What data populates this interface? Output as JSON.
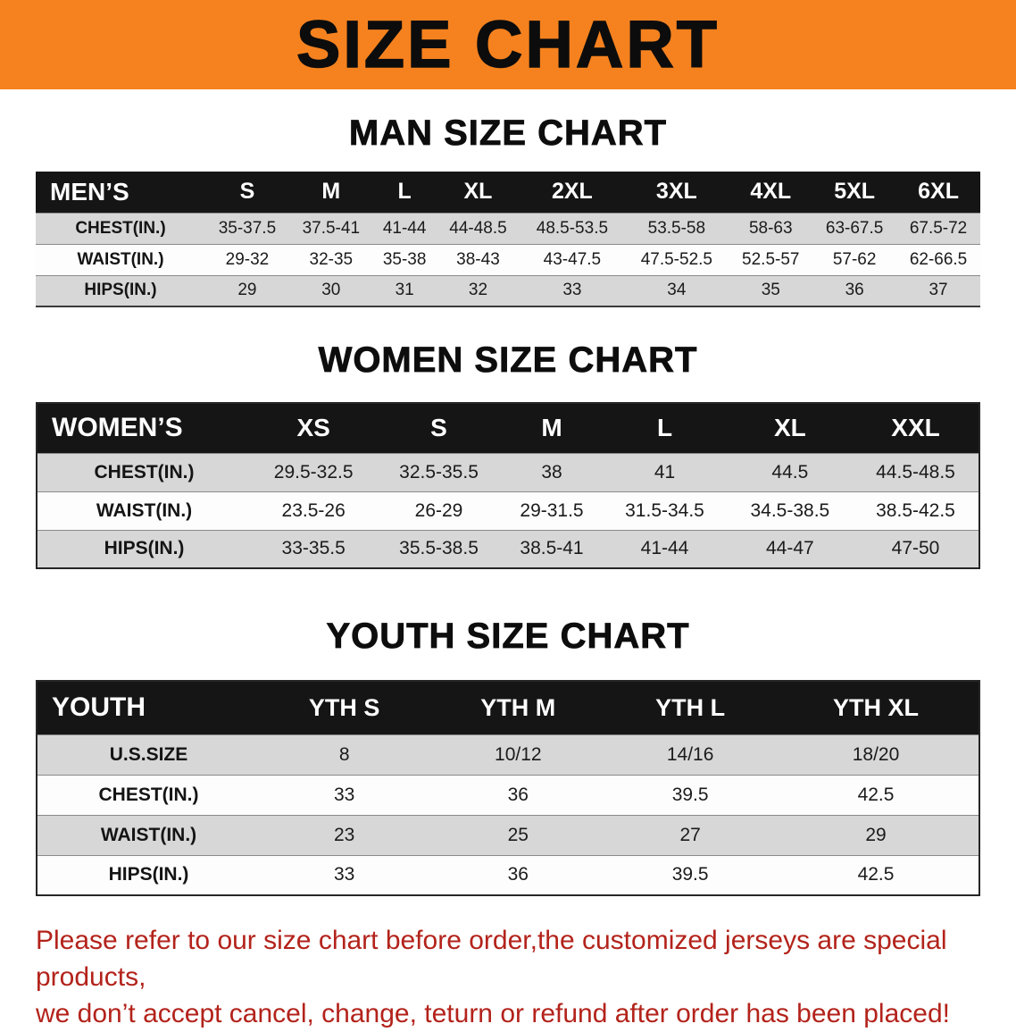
{
  "banner": {
    "title": "SIZE CHART",
    "bg_color": "#f5821f",
    "text_color": "#0c0c0c"
  },
  "colors": {
    "table_header_bg": "#151515",
    "row_alt_gray": "#d7d7d7",
    "footer_red": "#b3231b"
  },
  "sections": [
    {
      "key": "men",
      "heading": "MAN SIZE CHART",
      "table": {
        "header_label": "MEN’S",
        "columns": [
          "S",
          "M",
          "L",
          "XL",
          "2XL",
          "3XL",
          "4XL",
          "5XL",
          "6XL"
        ],
        "rows": [
          {
            "label": "CHEST(IN.)",
            "values": [
              "35-37.5",
              "37.5-41",
              "41-44",
              "44-48.5",
              "48.5-53.5",
              "53.5-58",
              "58-63",
              "63-67.5",
              "67.5-72"
            ]
          },
          {
            "label": "WAIST(IN.)",
            "values": [
              "29-32",
              "32-35",
              "35-38",
              "38-43",
              "43-47.5",
              "47.5-52.5",
              "52.5-57",
              "57-62",
              "62-66.5"
            ]
          },
          {
            "label": "HIPS(IN.)",
            "values": [
              "29",
              "30",
              "31",
              "32",
              "33",
              "34",
              "35",
              "36",
              "37"
            ]
          }
        ]
      }
    },
    {
      "key": "women",
      "heading": "WOMEN SIZE CHART",
      "table": {
        "header_label": "WOMEN’S",
        "columns": [
          "XS",
          "S",
          "M",
          "L",
          "XL",
          "XXL"
        ],
        "rows": [
          {
            "label": "CHEST(IN.)",
            "values": [
              "29.5-32.5",
              "32.5-35.5",
              "38",
              "41",
              "44.5",
              "44.5-48.5"
            ]
          },
          {
            "label": "WAIST(IN.)",
            "values": [
              "23.5-26",
              "26-29",
              "29-31.5",
              "31.5-34.5",
              "34.5-38.5",
              "38.5-42.5"
            ]
          },
          {
            "label": "HIPS(IN.)",
            "values": [
              "33-35.5",
              "35.5-38.5",
              "38.5-41",
              "41-44",
              "44-47",
              "47-50"
            ]
          }
        ]
      }
    },
    {
      "key": "youth",
      "heading": "YOUTH SIZE CHART",
      "table": {
        "header_label": "YOUTH",
        "columns": [
          "YTH S",
          "YTH M",
          "YTH L",
          "YTH XL"
        ],
        "rows": [
          {
            "label": "U.S.SIZE",
            "values": [
              "8",
              "10/12",
              "14/16",
              "18/20"
            ]
          },
          {
            "label": "CHEST(IN.)",
            "values": [
              "33",
              "36",
              "39.5",
              "42.5"
            ]
          },
          {
            "label": "WAIST(IN.)",
            "values": [
              "23",
              "25",
              "27",
              "29"
            ]
          },
          {
            "label": "HIPS(IN.)",
            "values": [
              "33",
              "36",
              "39.5",
              "42.5"
            ]
          }
        ]
      }
    }
  ],
  "footer_note": {
    "line1": "Please refer to our size chart before order,the customized jerseys are special products,",
    "line2": "we don’t accept cancel, change, teturn or refund after order has been placed!"
  }
}
